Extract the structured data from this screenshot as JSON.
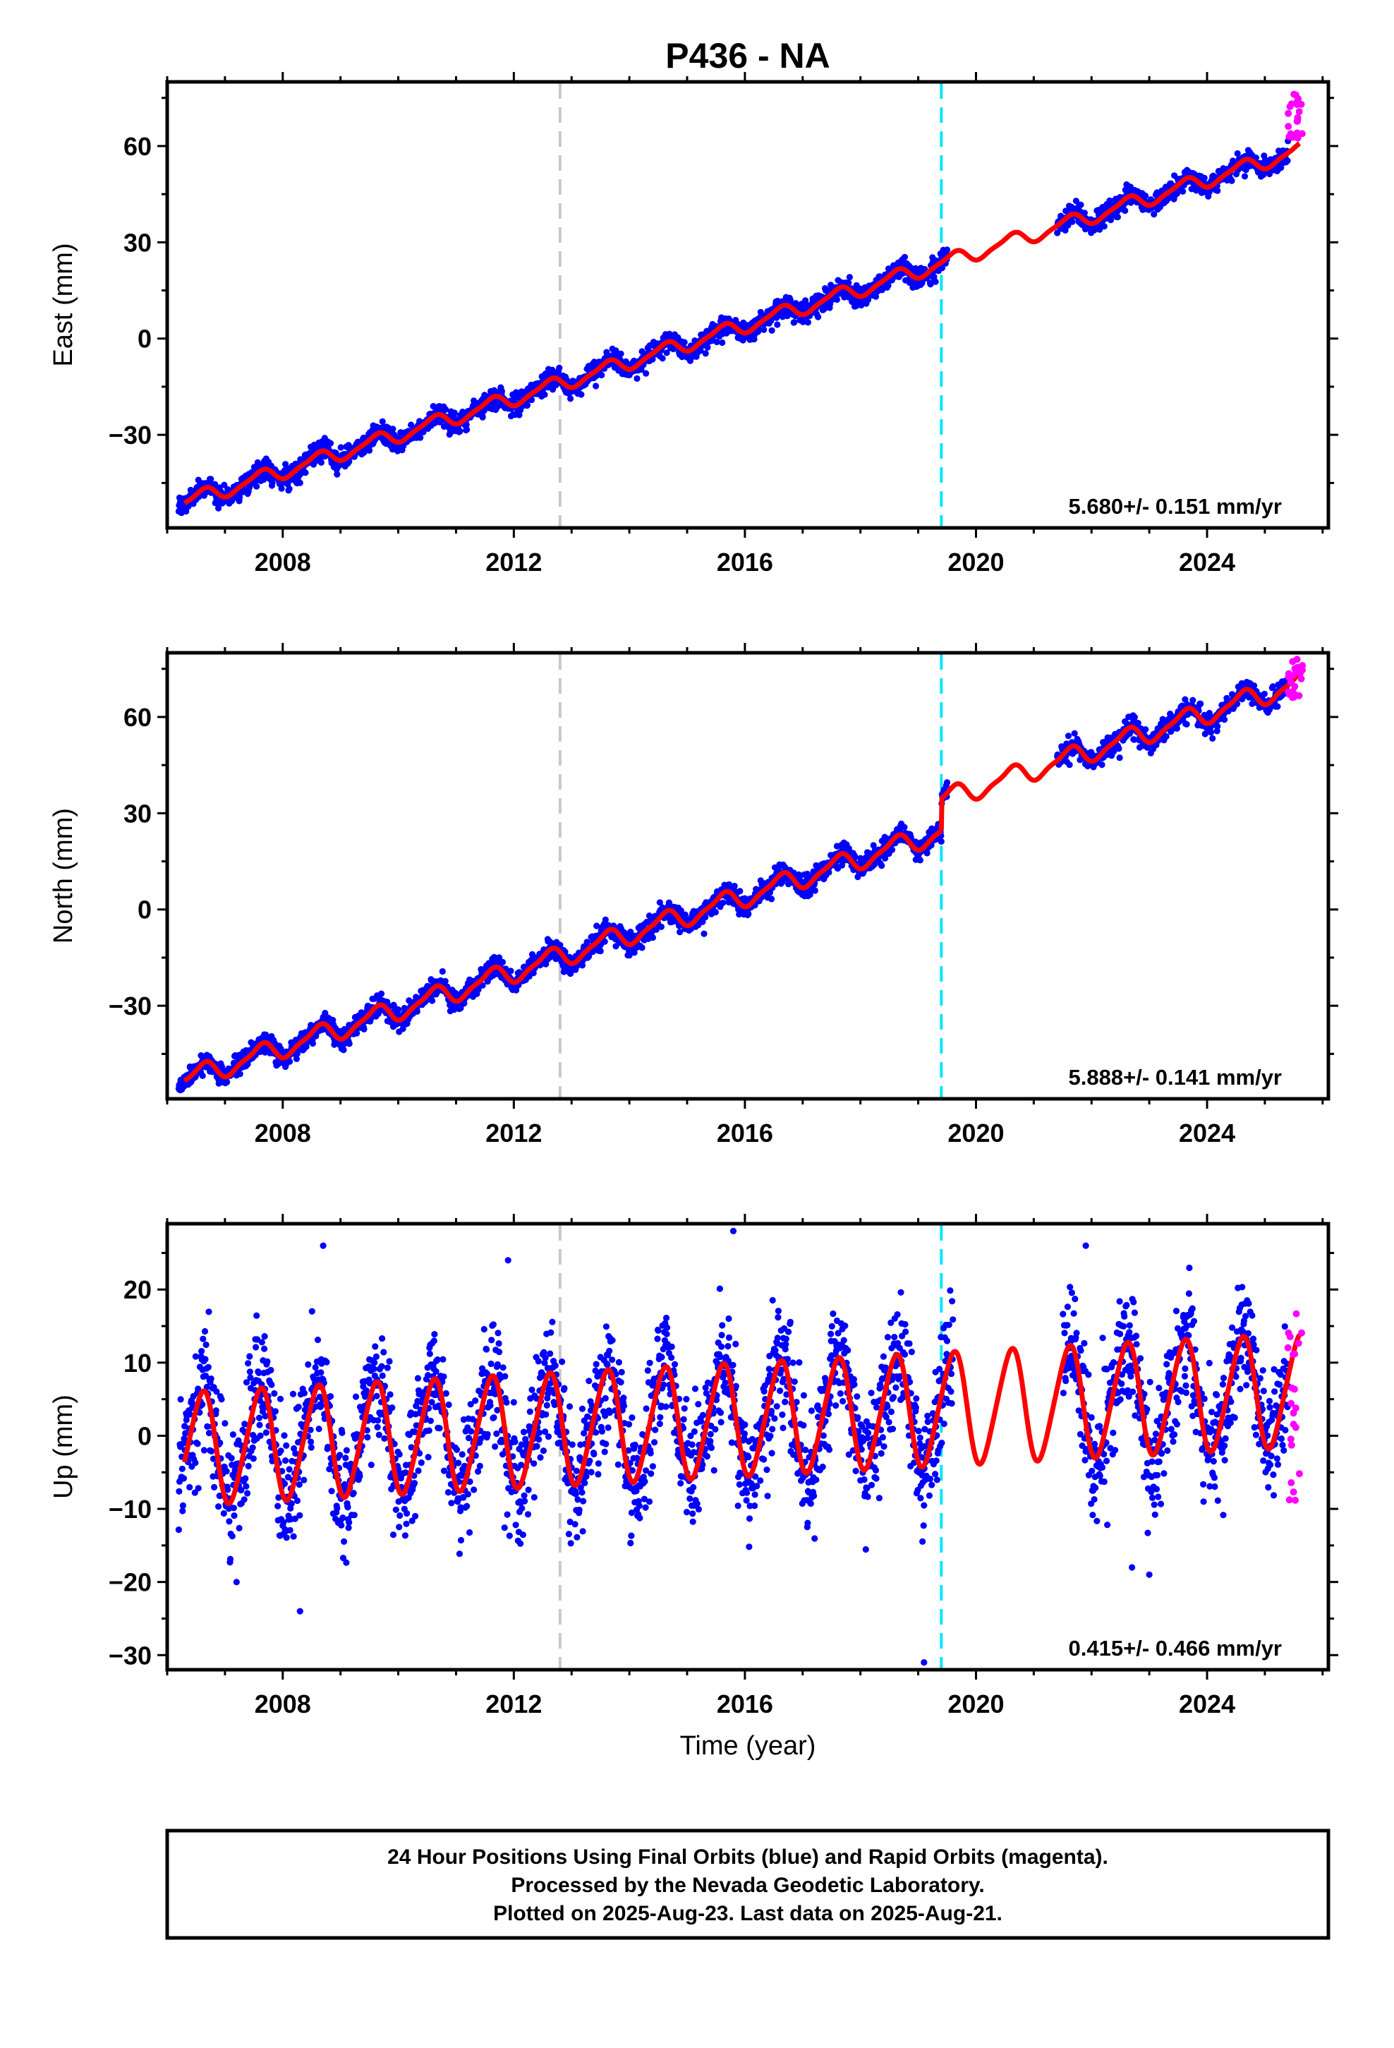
{
  "title": "P436 - NA",
  "xlabel": "Time (year)",
  "footer": {
    "line1": "24 Hour Positions Using Final Orbits (blue) and Rapid Orbits (magenta).",
    "line2": "Processed by the Nevada Geodetic Laboratory.",
    "line3": "Plotted on 2025-Aug-23. Last data on 2025-Aug-21."
  },
  "colors": {
    "final_orbits": "#0000ff",
    "rapid_orbits": "#ff00ff",
    "model": "#ff0000",
    "equipment_change": "#c8c8c8",
    "offset_marker": "#00e5ff"
  },
  "chart_data": [
    {
      "type": "scatter",
      "ylabel": "East (mm)",
      "xlim": [
        2006.0,
        2026.1
      ],
      "ylim": [
        -59,
        80
      ],
      "xticks": [
        "2008",
        "2012",
        "2016",
        "2020",
        "2024"
      ],
      "xtick_values": [
        2008,
        2012,
        2016,
        2020,
        2024
      ],
      "yticks": [
        "−30",
        "0",
        "30",
        "60"
      ],
      "ytick_values": [
        -30,
        0,
        30,
        60
      ],
      "rate": "5.680+/- 0.151 mm/yr",
      "vlines": [
        {
          "x": 2012.8,
          "kind": "equipment_change"
        },
        {
          "x": 2019.4,
          "kind": "offset_marker"
        }
      ],
      "model": {
        "trend_mm_per_yr": 5.68,
        "ref_year": 2006.3,
        "ref_value": -51,
        "annual_amp": 2.2,
        "semiannual_amp": 0.6,
        "segments": [
          [
            2006.3,
            2019.4
          ],
          [
            2019.4,
            2021.4
          ],
          [
            2021.4,
            2025.6
          ]
        ],
        "segment_offsets": [
          0,
          0,
          0
        ]
      },
      "final_orbits": {
        "span": [
          2006.2,
          2025.4
        ],
        "gaps": [
          [
            2019.5,
            2021.4
          ]
        ],
        "scatter_mm": 1.6
      },
      "rapid_orbits": {
        "span": [
          2025.4,
          2025.65
        ],
        "range_mm": [
          62,
          77
        ]
      }
    },
    {
      "type": "scatter",
      "ylabel": "North (mm)",
      "xlim": [
        2006.0,
        2026.1
      ],
      "ylim": [
        -59,
        80
      ],
      "xticks": [
        "2008",
        "2012",
        "2016",
        "2020",
        "2024"
      ],
      "xtick_values": [
        2008,
        2012,
        2016,
        2020,
        2024
      ],
      "yticks": [
        "−30",
        "0",
        "30",
        "60"
      ],
      "ytick_values": [
        -30,
        0,
        30,
        60
      ],
      "rate": "5.888+/- 0.141 mm/yr",
      "vlines": [
        {
          "x": 2012.8,
          "kind": "equipment_change"
        },
        {
          "x": 2019.4,
          "kind": "offset_marker"
        }
      ],
      "model": {
        "trend_mm_per_yr": 5.888,
        "ref_year": 2006.3,
        "ref_value": -53,
        "annual_amp": 3.0,
        "semiannual_amp": 0.9,
        "segments": [
          [
            2006.3,
            2019.4
          ],
          [
            2019.4,
            2025.6
          ]
        ],
        "segment_offsets": [
          0,
          10
        ]
      },
      "final_orbits": {
        "span": [
          2006.2,
          2025.4
        ],
        "gaps": [
          [
            2019.5,
            2021.4
          ]
        ],
        "scatter_mm": 1.6
      },
      "rapid_orbits": {
        "span": [
          2025.4,
          2025.65
        ],
        "range_mm": [
          64,
          78
        ]
      }
    },
    {
      "type": "scatter",
      "ylabel": "Up (mm)",
      "xlim": [
        2006.0,
        2026.1
      ],
      "ylim": [
        -32,
        29
      ],
      "xticks": [
        "2008",
        "2012",
        "2016",
        "2020",
        "2024"
      ],
      "xtick_values": [
        2008,
        2012,
        2016,
        2020,
        2024
      ],
      "yticks": [
        "−30",
        "−20",
        "−10",
        "0",
        "10",
        "20"
      ],
      "ytick_values": [
        -30,
        -20,
        -10,
        0,
        10,
        20
      ],
      "rate": "0.415+/- 0.466 mm/yr",
      "vlines": [
        {
          "x": 2012.8,
          "kind": "equipment_change"
        },
        {
          "x": 2019.4,
          "kind": "offset_marker"
        }
      ],
      "model": {
        "trend_mm_per_yr": 0.415,
        "ref_year": 2006.3,
        "ref_value": -1.8,
        "annual_amp": 7.6,
        "semiannual_amp": 0.9,
        "segments": [
          [
            2006.3,
            2025.6
          ]
        ],
        "segment_offsets": [
          0
        ]
      },
      "final_orbits": {
        "span": [
          2006.2,
          2025.4
        ],
        "gaps": [
          [
            2019.6,
            2021.5
          ]
        ],
        "scatter_mm": 4.2
      },
      "rapid_orbits": {
        "span": [
          2025.4,
          2025.65
        ],
        "range_mm": [
          -9,
          18
        ]
      },
      "outliers": [
        [
          2008.7,
          26
        ],
        [
          2011.9,
          24
        ],
        [
          2015.8,
          28
        ],
        [
          2021.9,
          26
        ],
        [
          2008.3,
          -24
        ],
        [
          2007.2,
          -20
        ],
        [
          2019.1,
          -31
        ],
        [
          2023.0,
          -19
        ],
        [
          2022.7,
          -18
        ]
      ]
    }
  ]
}
